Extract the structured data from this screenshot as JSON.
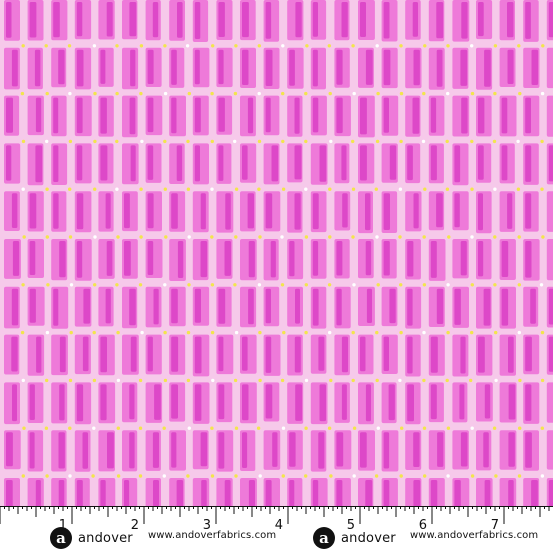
{
  "fabric": {
    "background_color": "#f6c9ea",
    "bar_light_color": "#ee7ad9",
    "bar_dark_color": "#d93fc4",
    "dot_yellow_color": "#f2e64c",
    "dot_white_color": "#ffffff"
  },
  "ruler": {
    "inch_labels": [
      "1",
      "2",
      "3",
      "4",
      "5",
      "6",
      "7"
    ]
  },
  "watermarks": [
    {
      "logo_letter": "a",
      "brand": "andover",
      "url": "www.andoverfabrics.com"
    },
    {
      "logo_letter": "a",
      "brand": "andover",
      "url": "www.andoverfabrics.com"
    }
  ]
}
